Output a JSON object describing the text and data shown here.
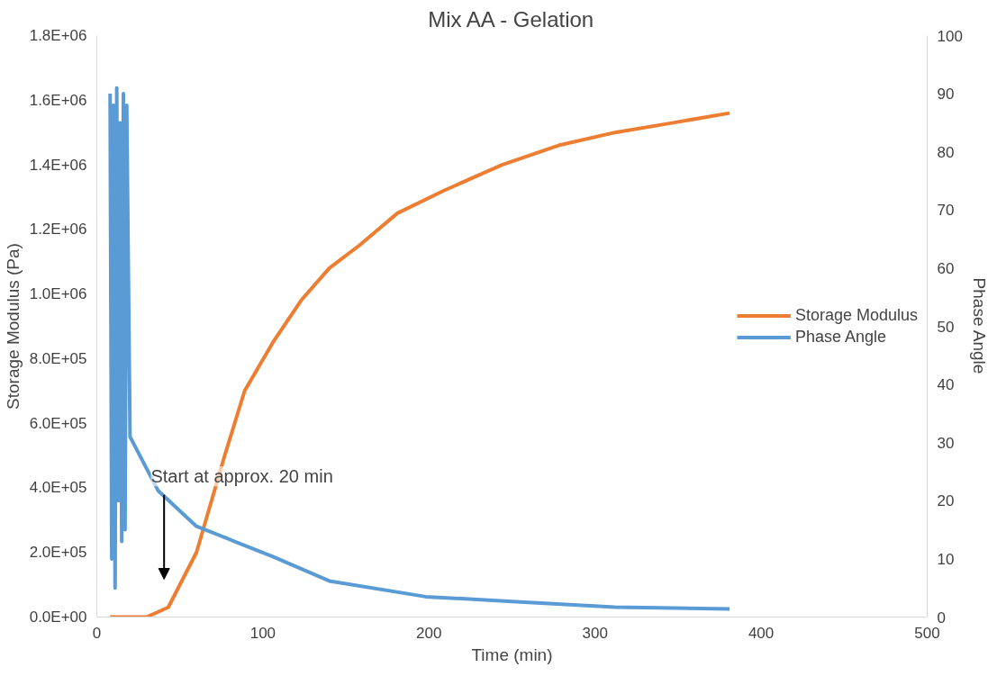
{
  "chart_data": {
    "type": "line",
    "title": "Mix AA - Gelation",
    "xlabel": "Time (min)",
    "ylabel": "Storage Modulus (Pa)",
    "y2label": "Phase Angle",
    "xlim": [
      0,
      500
    ],
    "xticks": [
      0,
      100,
      200,
      300,
      400,
      500
    ],
    "ylim": [
      0,
      1800000
    ],
    "yticks": [
      {
        "value": 0,
        "label": "0.0E+00"
      },
      {
        "value": 200000,
        "label": "2.0E+05"
      },
      {
        "value": 400000,
        "label": "4.0E+05"
      },
      {
        "value": 600000,
        "label": "6.0E+05"
      },
      {
        "value": 800000,
        "label": "8.0E+05"
      },
      {
        "value": 1000000,
        "label": "1.0E+06"
      },
      {
        "value": 1200000,
        "label": "1.2E+06"
      },
      {
        "value": 1400000,
        "label": "1.4E+06"
      },
      {
        "value": 1600000,
        "label": "1.6E+06"
      },
      {
        "value": 1800000,
        "label": "1.8E+06"
      }
    ],
    "y2lim": [
      0,
      100
    ],
    "y2ticks": [
      0,
      10,
      20,
      30,
      40,
      50,
      60,
      70,
      80,
      90,
      100
    ],
    "grid": false,
    "legend": "right",
    "annotations": [
      "Start at approx. 20 min"
    ],
    "series": [
      {
        "name": "Storage Modulus",
        "color": "#ed7d31",
        "x": [
          8,
          30,
          43,
          60,
          77,
          89,
          106,
          123,
          140,
          158,
          181,
          209,
          244,
          278,
          312,
          347,
          381
        ],
        "values": [
          0,
          0,
          30000,
          200000,
          500000,
          700000,
          850000,
          980000,
          1080000,
          1150000,
          1250000,
          1320000,
          1400000,
          1460000,
          1500000,
          1530000,
          1560000
        ]
      },
      {
        "name": "Phase Angle",
        "color": "#5b9bd5",
        "axis": "y2",
        "x": [
          8,
          9,
          10,
          11,
          12,
          13,
          14,
          15,
          16,
          17,
          18,
          20,
          37,
          60,
          83,
          106,
          140,
          198,
          255,
          312,
          381
        ],
        "values": [
          90,
          10,
          88,
          5,
          91,
          20,
          85,
          13,
          90,
          15,
          88,
          31,
          21.7,
          15.6,
          13,
          10.4,
          6.2,
          3.5,
          2.6,
          1.7,
          1.4
        ]
      }
    ]
  }
}
